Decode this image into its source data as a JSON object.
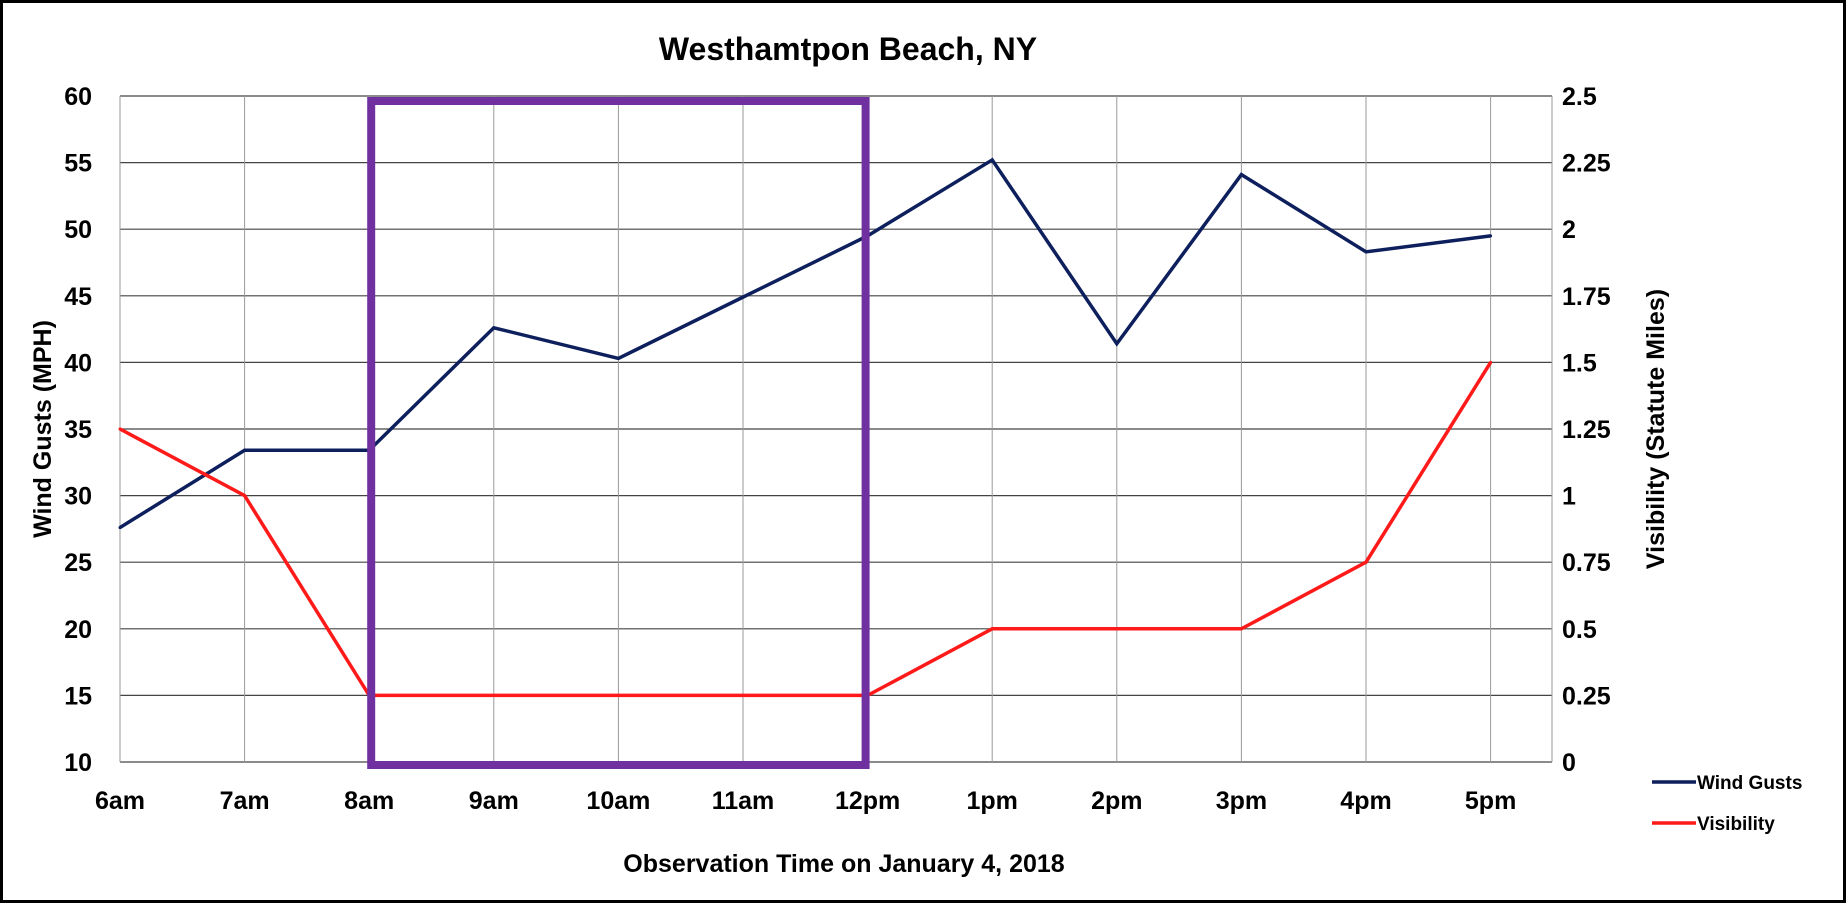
{
  "chart_data": {
    "type": "line",
    "title": "Westhamtpon Beach, NY",
    "xlabel": "Observation Time on January 4, 2018",
    "ylabel": "Wind Gusts (MPH)",
    "y2label": "Visibility (Statute Miles)",
    "categories": [
      "6am",
      "7am",
      "8am",
      "9am",
      "10am",
      "11am",
      "12pm",
      "1pm",
      "2pm",
      "3pm",
      "4pm",
      "5pm"
    ],
    "ylim": [
      10,
      60
    ],
    "y2lim": [
      0,
      2.5
    ],
    "yticks": [
      "10",
      "15",
      "20",
      "25",
      "30",
      "35",
      "40",
      "45",
      "50",
      "55",
      "60"
    ],
    "y2ticks": [
      "0",
      "0.25",
      "0.5",
      "0.75",
      "1",
      "1.25",
      "1.5",
      "1.75",
      "2",
      "2.25",
      "2.5"
    ],
    "grid": true,
    "legend_position": "bottom-right",
    "series": [
      {
        "name": "Wind Gusts",
        "axis": "left",
        "color": "#0d1f5c",
        "values": [
          27.6,
          33.4,
          33.4,
          42.6,
          40.3,
          44.9,
          49.5,
          55.2,
          41.4,
          54.1,
          48.3,
          49.5
        ]
      },
      {
        "name": "Visibility",
        "axis": "right",
        "color": "#ff1a1a",
        "values": [
          1.25,
          1.0,
          0.25,
          0.25,
          0.25,
          0.25,
          0.25,
          0.5,
          0.5,
          0.5,
          0.75,
          1.5
        ]
      }
    ],
    "highlight": {
      "from": "8am",
      "to": "12pm",
      "color": "#7030a0"
    }
  }
}
